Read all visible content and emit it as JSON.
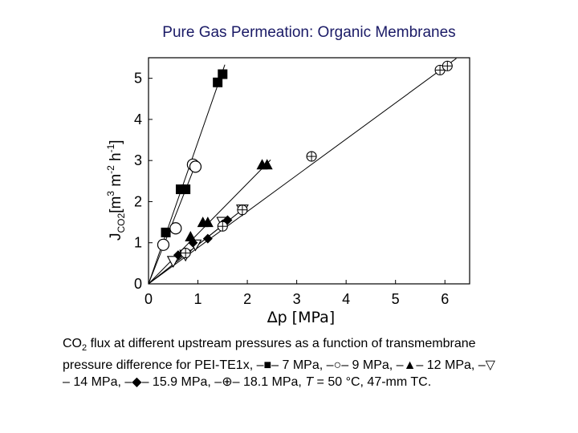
{
  "chart_data": {
    "type": "scatter",
    "title": "Pure Gas Permeation:  Organic Membranes",
    "xlabel": "∆p [MPa]",
    "ylabel": "J_CO2 [m^3 m^-2 h^-1]",
    "ylabel_parts": {
      "j": "J",
      "sub": "CO2",
      "unit": "[m",
      "e3": "3",
      "m": " m",
      "em2": "-2",
      "h": " h",
      "em1": "-1",
      "close": "]"
    },
    "xlim": [
      0,
      6.5
    ],
    "ylim": [
      0,
      5.5
    ],
    "xticks": [
      "0",
      "1",
      "2",
      "3",
      "4",
      "5",
      "6"
    ],
    "yticks": [
      "0",
      "1",
      "2",
      "3",
      "4",
      "5"
    ],
    "grid": false,
    "series": [
      {
        "name": "7 MPa",
        "marker": "filled-square",
        "x": [
          0.35,
          0.65,
          0.75,
          1.4,
          1.5
        ],
        "y": [
          1.25,
          2.3,
          2.3,
          4.9,
          5.1
        ],
        "fit_slope": 3.45
      },
      {
        "name": "9 MPa",
        "marker": "open-circle",
        "x": [
          0.3,
          0.55,
          0.9,
          0.95
        ],
        "y": [
          0.95,
          1.35,
          2.9,
          2.85
        ],
        "fit_slope": 3.05
      },
      {
        "name": "12 MPa",
        "marker": "filled-triangle",
        "x": [
          0.85,
          1.1,
          1.2,
          2.3,
          2.4
        ],
        "y": [
          1.15,
          1.5,
          1.5,
          2.9,
          2.9
        ],
        "fit_slope": 1.22
      },
      {
        "name": "14 MPa",
        "marker": "open-triangle-down",
        "x": [
          0.5,
          0.75,
          0.95,
          1.5,
          1.9
        ],
        "y": [
          0.55,
          0.7,
          0.95,
          1.5,
          1.8
        ],
        "fit_slope": 0.95
      },
      {
        "name": "15.9 MPa",
        "marker": "filled-diamond",
        "x": [
          0.6,
          0.9,
          1.2,
          1.5,
          1.6
        ],
        "y": [
          0.7,
          1.0,
          1.1,
          1.45,
          1.55
        ],
        "fit_slope": 0.95
      },
      {
        "name": "18.1 MPa",
        "marker": "crossed-circle",
        "x": [
          0.75,
          1.5,
          1.9,
          3.3,
          5.9,
          6.05
        ],
        "y": [
          0.75,
          1.4,
          1.8,
          3.1,
          5.2,
          5.3
        ],
        "fit_slope": 0.88
      }
    ]
  },
  "caption": {
    "line1_a": "CO",
    "line1_sub": "2",
    "line1_b": " flux at different upstream pressures as a function of transmembrane",
    "line2": "pressure difference for PEI-TE1x, –■– 7 MPa, –○– 9 MPa, –▲– 12 MPa, –▽",
    "line3_a": "– 14 MPa, –◆– 15.9 MPa, –⊕– 18.1 MPa, ",
    "line3_t": "T",
    "line3_b": " = 50 °C, 47-mm TC."
  }
}
